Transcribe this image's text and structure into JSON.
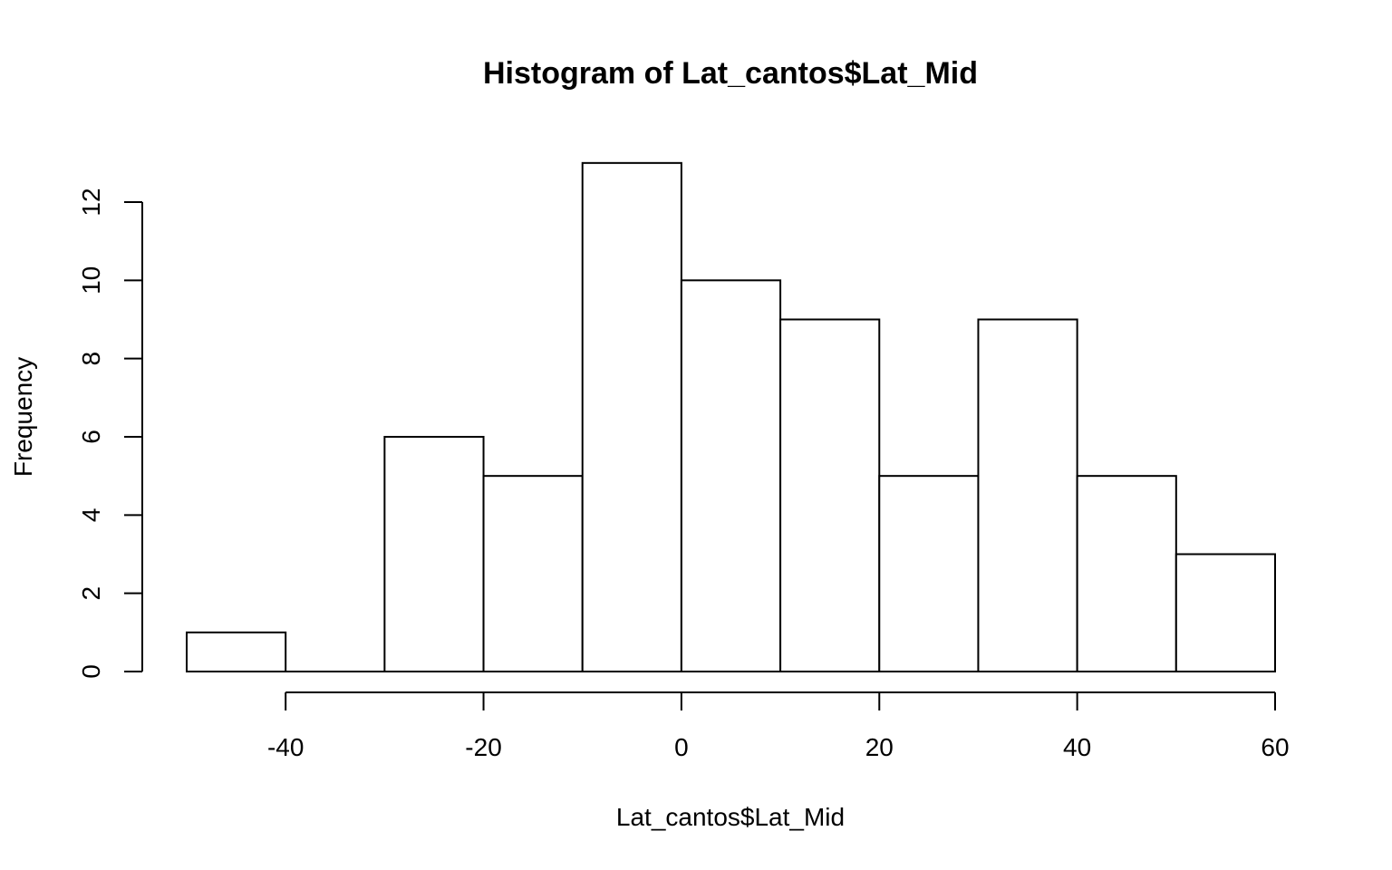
{
  "chart_data": {
    "type": "bar",
    "subtype": "histogram",
    "title": "Histogram of Lat_cantos$Lat_Mid",
    "xlabel": "Lat_cantos$Lat_Mid",
    "ylabel": "Frequency",
    "bins": [
      {
        "start": -50,
        "end": -40,
        "count": 1
      },
      {
        "start": -40,
        "end": -30,
        "count": 0
      },
      {
        "start": -30,
        "end": -20,
        "count": 6
      },
      {
        "start": -20,
        "end": -10,
        "count": 5
      },
      {
        "start": -10,
        "end": 0,
        "count": 13
      },
      {
        "start": 0,
        "end": 10,
        "count": 10
      },
      {
        "start": 10,
        "end": 20,
        "count": 9
      },
      {
        "start": 20,
        "end": 30,
        "count": 5
      },
      {
        "start": 30,
        "end": 40,
        "count": 9
      },
      {
        "start": 40,
        "end": 50,
        "count": 5
      },
      {
        "start": 50,
        "end": 60,
        "count": 3
      }
    ],
    "xlim": [
      -50,
      60
    ],
    "ylim": [
      0,
      13
    ],
    "x_ticks": [
      -40,
      -20,
      0,
      20,
      40,
      60
    ],
    "x_tick_labels": [
      "-40",
      "-20",
      "0",
      "20",
      "40",
      "60"
    ],
    "y_ticks": [
      0,
      2,
      4,
      6,
      8,
      10,
      12
    ],
    "y_tick_labels": [
      "0",
      "2",
      "4",
      "6",
      "8",
      "10",
      "12"
    ],
    "grid": false,
    "legend": "none",
    "colors": {
      "bar_fill": "#ffffff",
      "bar_stroke": "#000000"
    }
  }
}
